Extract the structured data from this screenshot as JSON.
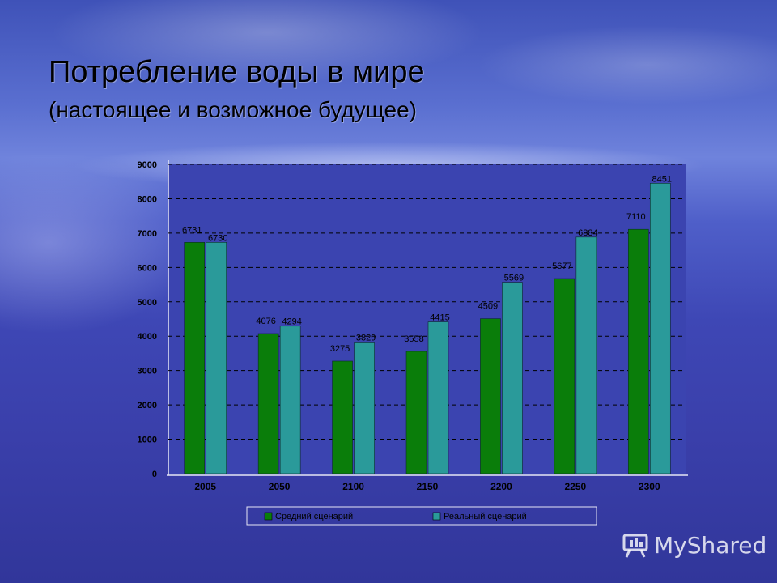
{
  "slide": {
    "title": "Потребление воды в мире",
    "subtitle": "(настоящее и возможное будущее)"
  },
  "chart_data": {
    "type": "bar",
    "categories": [
      "2005",
      "2050",
      "2100",
      "2150",
      "2200",
      "2250",
      "2300"
    ],
    "series": [
      {
        "name": "Средний сценарий",
        "values": [
          6731,
          4076,
          3275,
          3558,
          4509,
          5677,
          7110
        ],
        "color": "#0a7d0a"
      },
      {
        "name": "Реальный сценарий",
        "values": [
          6730,
          4294,
          3829,
          4415,
          5569,
          6884,
          8451
        ],
        "color": "#2a9a9a"
      }
    ],
    "yticks": [
      "0",
      "1000",
      "2000",
      "3000",
      "4000",
      "5000",
      "6000",
      "7000",
      "8000",
      "9000"
    ],
    "ylim": [
      0,
      9000
    ],
    "grid": true,
    "legend_position": "bottom"
  },
  "watermark": {
    "text": "MyShared",
    "icon": "presentation-board-icon"
  },
  "colors": {
    "plot_background": "#3b44b0",
    "gridline": "#000000",
    "text": "#000000"
  }
}
